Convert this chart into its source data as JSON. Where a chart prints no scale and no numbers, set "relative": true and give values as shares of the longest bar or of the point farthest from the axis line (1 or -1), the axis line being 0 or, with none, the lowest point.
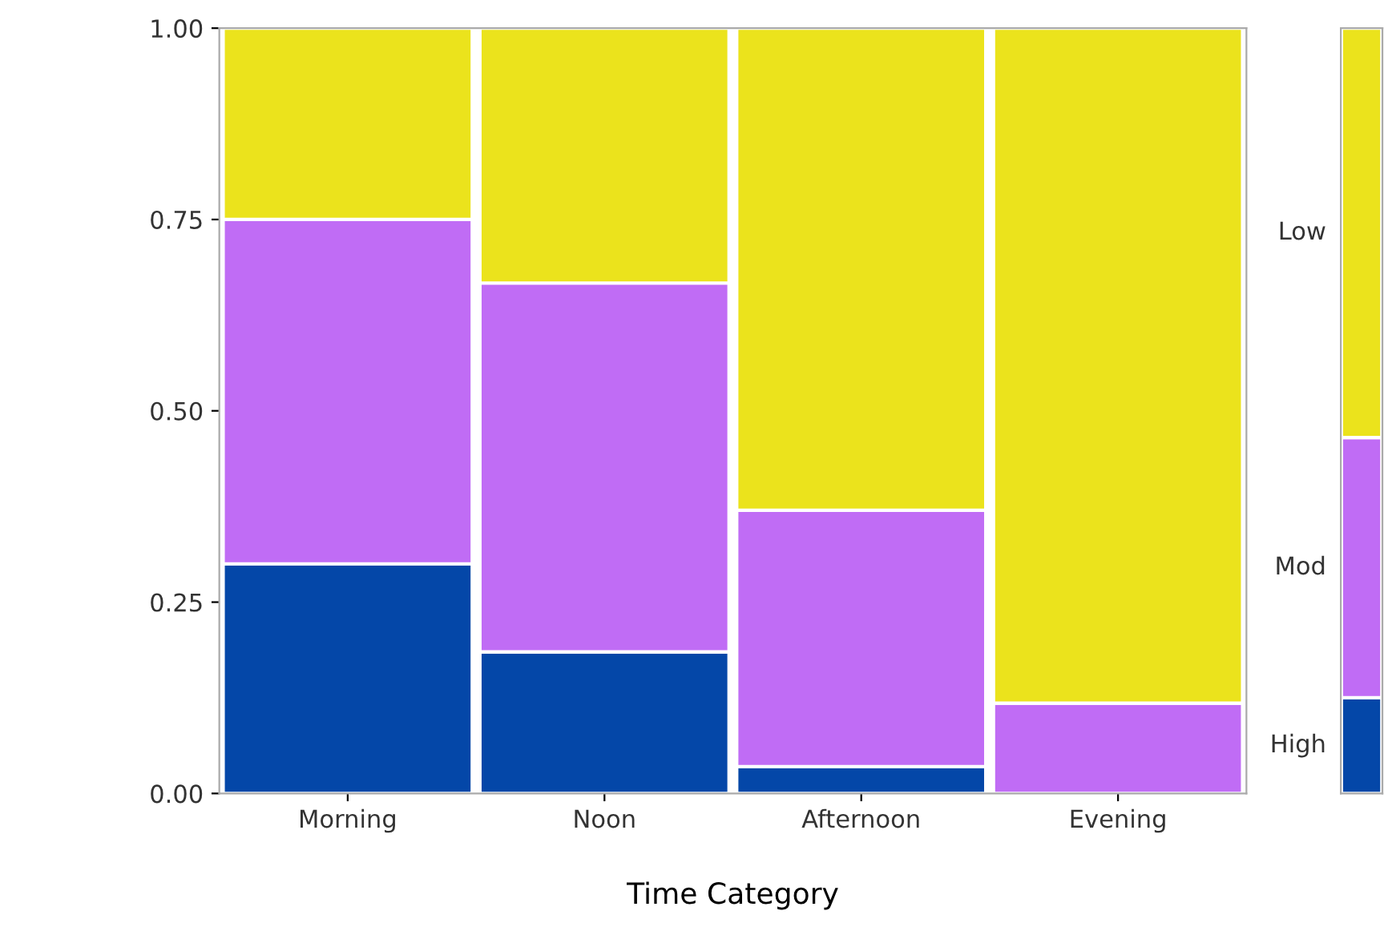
{
  "chart_data": [
    {
      "type": "bar",
      "stacked": true,
      "categories": [
        "Morning",
        "Noon",
        "Afternoon",
        "Evening"
      ],
      "xlabel": "Time Category",
      "series": [
        {
          "color": "#0447a8",
          "values": [
            0.3,
            0.185,
            0.035,
            0
          ]
        },
        {
          "color": "#c06cf5",
          "values": [
            0.45,
            0.482,
            0.335,
            0.118
          ]
        },
        {
          "color": "#ebe31c",
          "values": [
            0.25,
            0.333,
            0.63,
            0.882
          ]
        }
      ],
      "ylim": [
        0,
        1
      ],
      "yticks": [
        {
          "value": 0,
          "label": "0.00"
        },
        {
          "value": 0.25,
          "label": "0.25"
        },
        {
          "value": 0.5,
          "label": "0.50"
        },
        {
          "value": 0.75,
          "label": "0.75"
        },
        {
          "value": 1,
          "label": "1.00"
        }
      ],
      "legend": false
    },
    {
      "type": "bar",
      "stacked": true,
      "relative": true,
      "categories": [
        null
      ],
      "series": [
        {
          "name": "High",
          "color": "#0447a8",
          "values": [
            0.125
          ]
        },
        {
          "name": "Mod",
          "color": "#c06cf5",
          "values": [
            0.34
          ]
        },
        {
          "name": "Low",
          "color": "#ebe31c",
          "values": [
            0.535
          ]
        }
      ],
      "tick_labels": false
    }
  ]
}
